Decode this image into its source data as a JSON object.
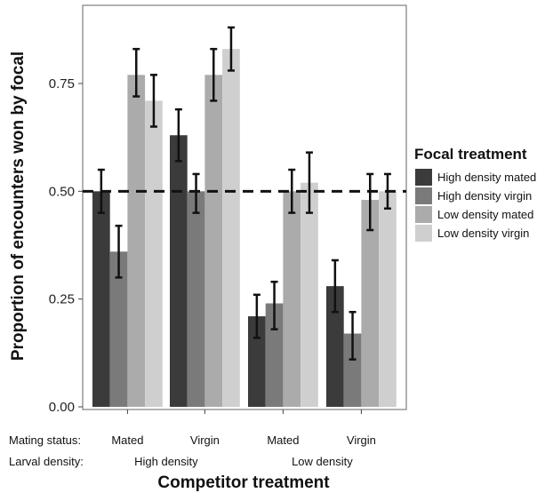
{
  "chart_data": {
    "type": "bar",
    "ylabel": "Proportion of encounters won by focal",
    "xlabel": "Competitor treatment",
    "ylim": [
      0,
      0.9
    ],
    "yticks": [
      "0.00",
      "0.25",
      "0.50",
      "0.75"
    ],
    "ytick_values": [
      0,
      0.25,
      0.5,
      0.75
    ],
    "reference_line": 0.5,
    "grid": false,
    "legend_position": "right",
    "x_rows": [
      {
        "label": "Mating status:",
        "labels": [
          "Mated",
          "Virgin",
          "Mated",
          "Virgin"
        ]
      },
      {
        "label": "Larval density:",
        "labels": [
          "High density",
          "Low density"
        ]
      }
    ],
    "categories": [
      "High density mated",
      "High density virgin",
      "Low density mated",
      "Low density virgin"
    ],
    "legend_title": "Focal treatment",
    "series": [
      {
        "name": "High density mated",
        "color": "#3b3b3b",
        "values": [
          0.5,
          0.63,
          0.21,
          0.28
        ],
        "err_low": [
          0.45,
          0.57,
          0.16,
          0.22
        ],
        "err_high": [
          0.55,
          0.69,
          0.26,
          0.34
        ]
      },
      {
        "name": "High density virgin",
        "color": "#7a7a7a",
        "values": [
          0.36,
          0.5,
          0.24,
          0.17
        ],
        "err_low": [
          0.3,
          0.45,
          0.18,
          0.11
        ],
        "err_high": [
          0.42,
          0.54,
          0.29,
          0.22
        ]
      },
      {
        "name": "Low density mated",
        "color": "#ababab",
        "values": [
          0.77,
          0.77,
          0.5,
          0.48
        ],
        "err_low": [
          0.72,
          0.71,
          0.45,
          0.41
        ],
        "err_high": [
          0.83,
          0.83,
          0.55,
          0.54
        ]
      },
      {
        "name": "Low density virgin",
        "color": "#cfcfcf",
        "values": [
          0.71,
          0.83,
          0.52,
          0.5
        ],
        "err_low": [
          0.65,
          0.78,
          0.45,
          0.46
        ],
        "err_high": [
          0.77,
          0.88,
          0.59,
          0.54
        ]
      }
    ]
  }
}
